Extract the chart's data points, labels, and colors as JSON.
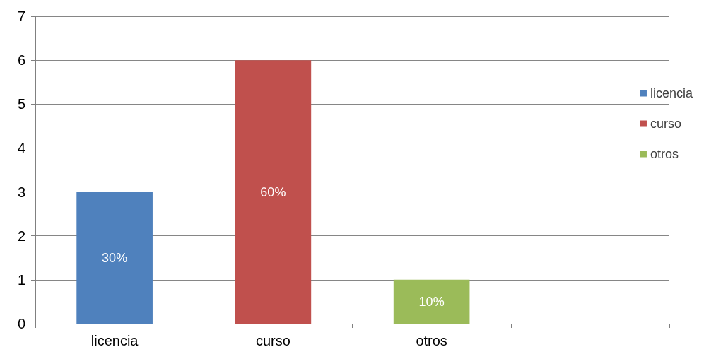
{
  "chart_data": {
    "type": "bar",
    "categories": [
      "licencia",
      "curso",
      "otros",
      null
    ],
    "series": [
      {
        "name": "licencia",
        "color": "#4f81bd",
        "values": [
          3,
          null,
          null,
          null
        ]
      },
      {
        "name": "curso",
        "color": "#c0504d",
        "values": [
          null,
          6,
          null,
          null
        ]
      },
      {
        "name": "otros",
        "color": "#9bbb59",
        "values": [
          null,
          null,
          1,
          null
        ]
      }
    ],
    "annotations": [
      "30%",
      "60%",
      "10%"
    ],
    "ylim": [
      0,
      7
    ],
    "yticks": [
      0,
      1,
      2,
      3,
      4,
      5,
      6,
      7
    ],
    "grid": "y",
    "legend": "right"
  }
}
